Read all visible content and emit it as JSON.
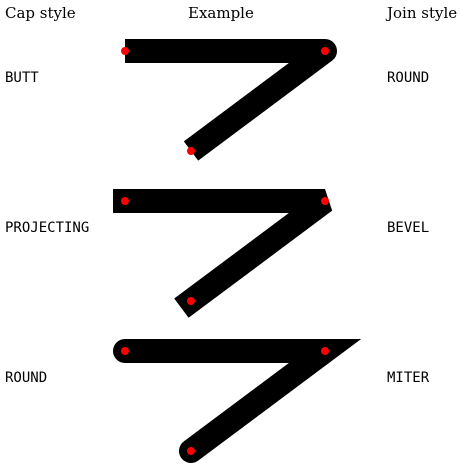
{
  "headers": {
    "cap_style": "Cap style",
    "example": "Example",
    "join_style": "Join style"
  },
  "rows": [
    {
      "cap": "BUTT",
      "join": "ROUND",
      "cap_value": "butt",
      "join_value": "round"
    },
    {
      "cap": "PROJECTING",
      "join": "BEVEL",
      "cap_value": "square",
      "join_value": "bevel"
    },
    {
      "cap": "ROUND",
      "join": "MITER",
      "cap_value": "round",
      "join_value": "miter"
    }
  ],
  "colors": {
    "stroke": "#000000",
    "point": "#ff0000",
    "background": "#ffffff"
  }
}
